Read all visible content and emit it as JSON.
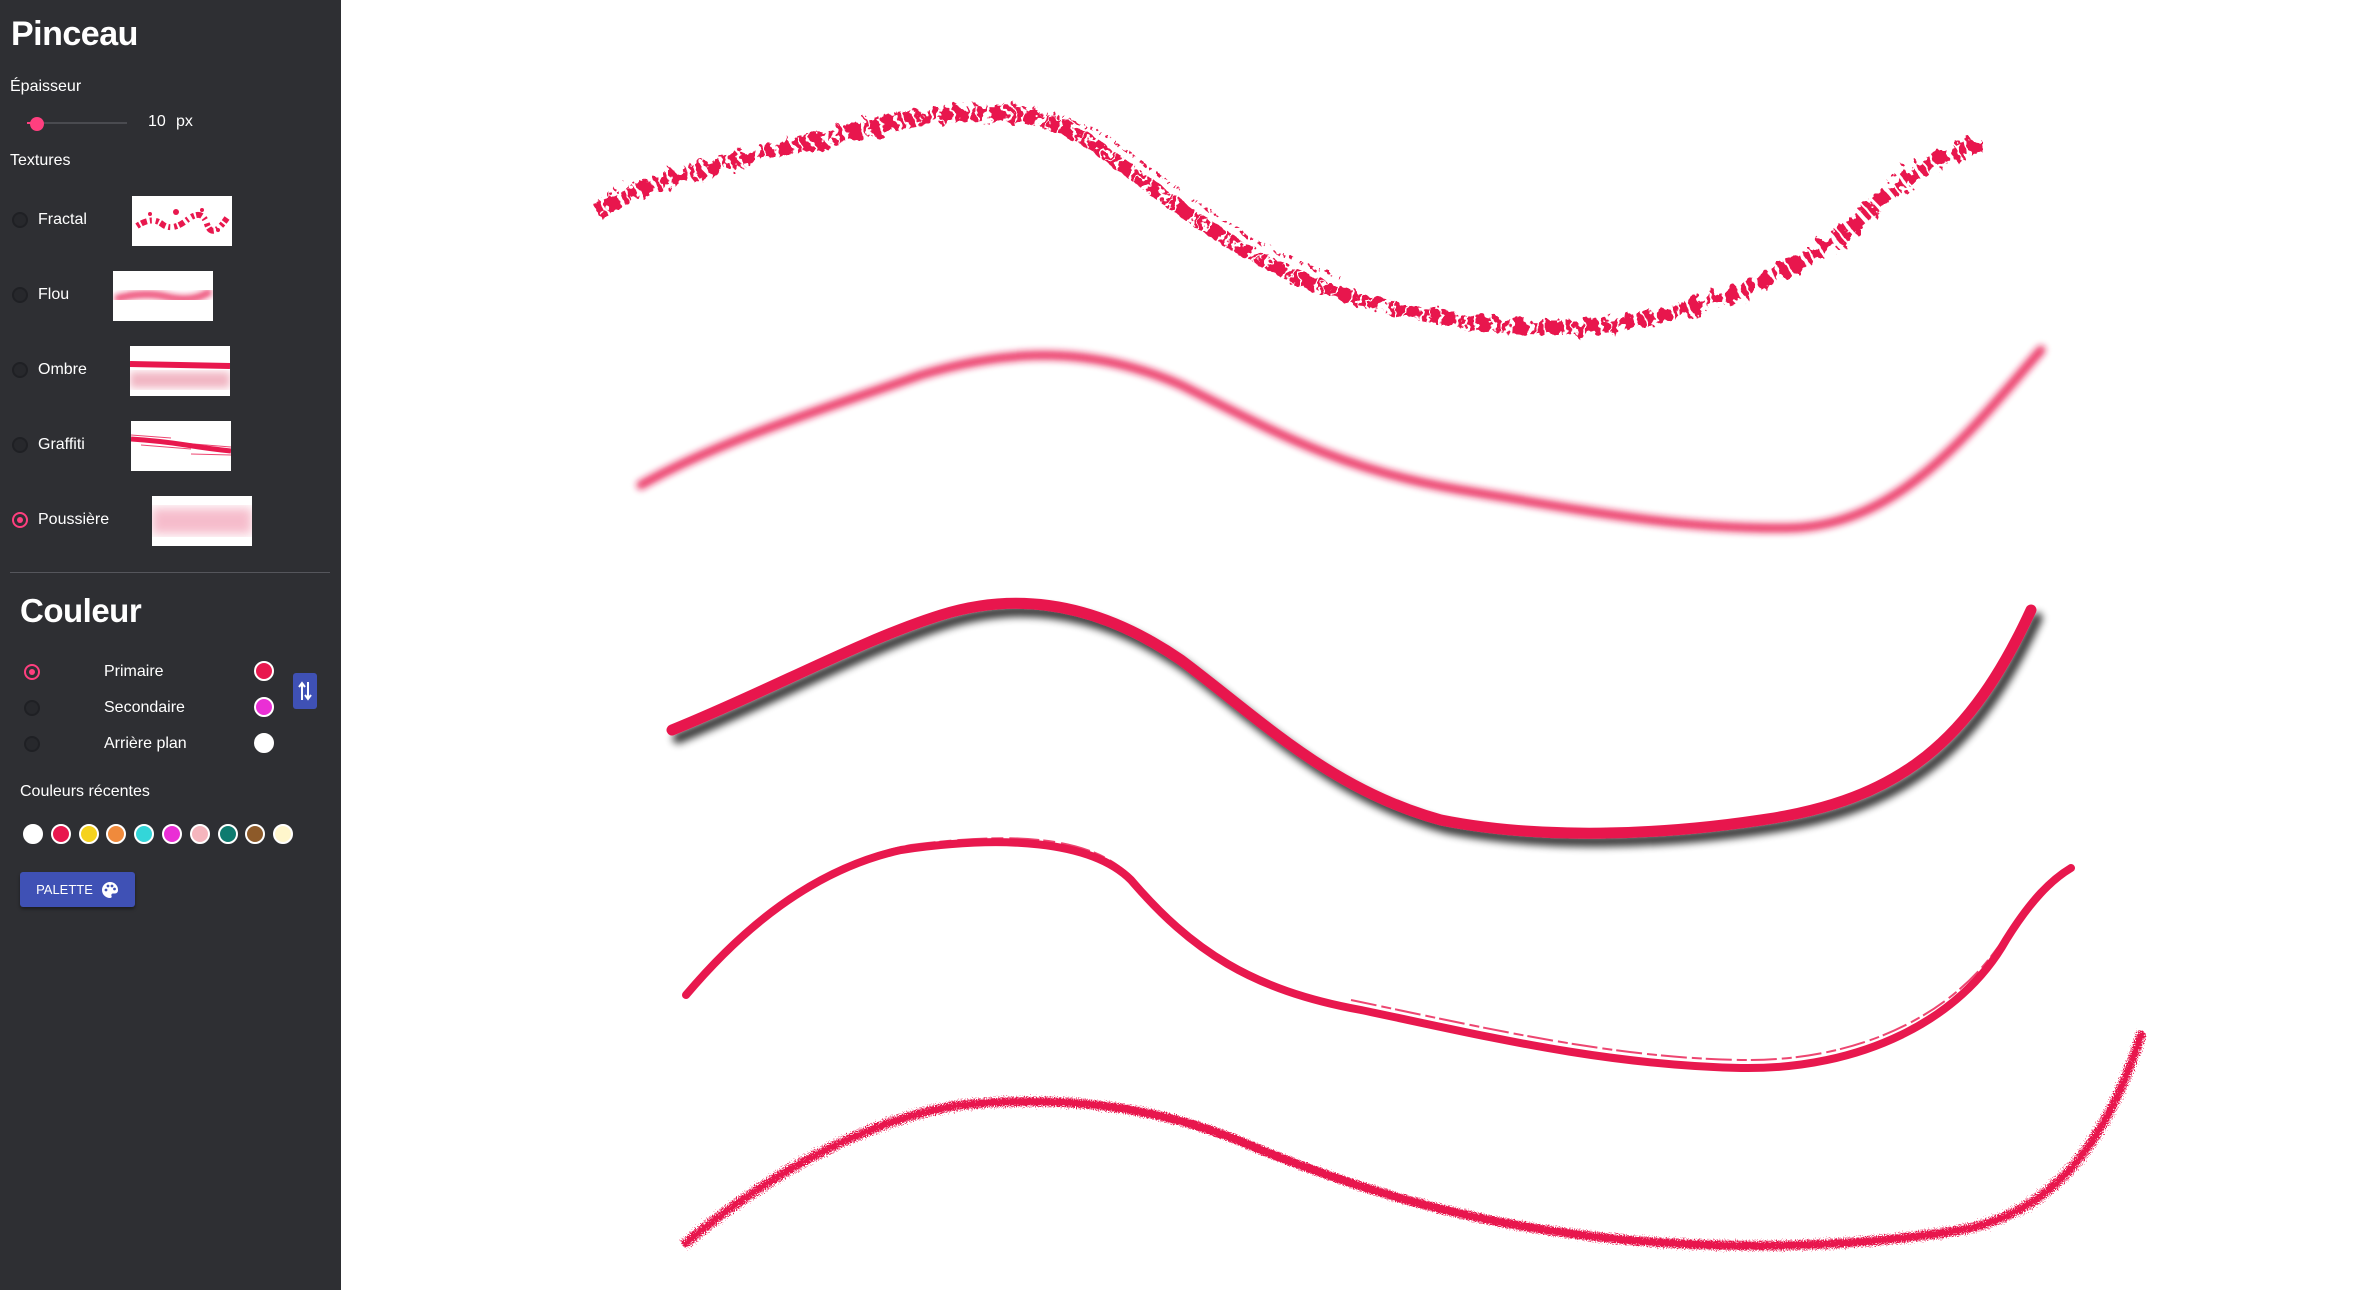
{
  "brush": {
    "title": "Pinceau",
    "thickness_label": "Épaisseur",
    "thickness_value": "10",
    "thickness_unit": "px",
    "thickness_slider_fraction": 0.1,
    "textures_label": "Textures",
    "textures": [
      {
        "label": "Fractal",
        "selected": false
      },
      {
        "label": "Flou",
        "selected": false
      },
      {
        "label": "Ombre",
        "selected": false
      },
      {
        "label": "Graffiti",
        "selected": false
      },
      {
        "label": "Poussière",
        "selected": true
      }
    ]
  },
  "color": {
    "title": "Couleur",
    "slots": [
      {
        "label": "Primaire",
        "selected": true,
        "color": "#e8184e"
      },
      {
        "label": "Secondaire",
        "selected": false,
        "color": "#ea2fd5"
      },
      {
        "label": "Arrière plan",
        "selected": false,
        "color": "#ffffff"
      }
    ],
    "recent_label": "Couleurs récentes",
    "recent": [
      "#ffffff",
      "#e8184e",
      "#f5d21e",
      "#f08a3c",
      "#33d6d9",
      "#ea2fd5",
      "#f5b5bd",
      "#0e7b6f",
      "#8d5a29",
      "#fff6cc"
    ],
    "palette_button": "PALETTE",
    "palette_icon": "palette-icon",
    "swap_icon": "swap-icon"
  },
  "stroke_color": "#e8184e",
  "accent": "#ff3f7f",
  "button_color": "#3f51b5"
}
